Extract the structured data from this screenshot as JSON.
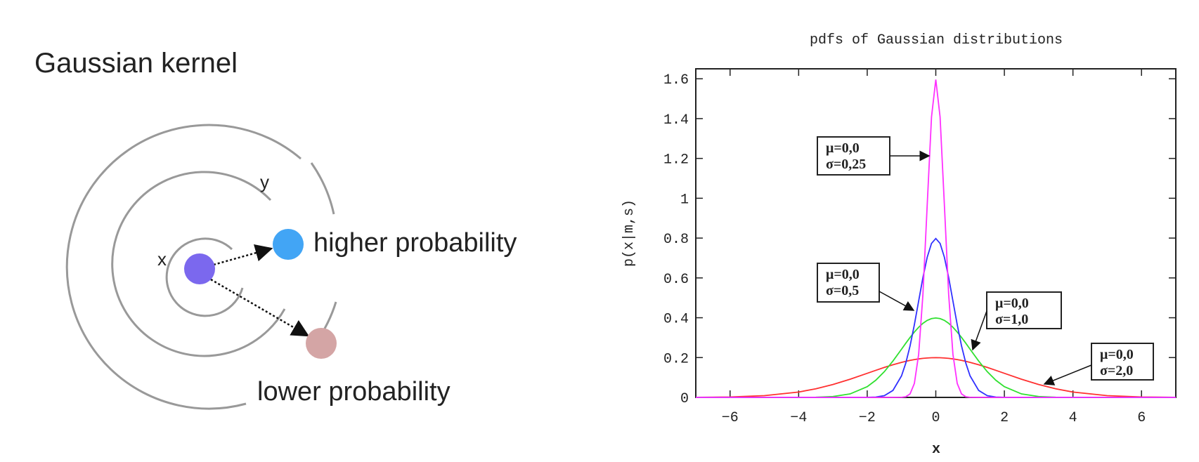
{
  "diagram": {
    "title": "Gaussian kernel",
    "point_x": "x",
    "point_y": "y",
    "higher": "higher probability",
    "lower": "lower probability"
  },
  "chart_data": {
    "type": "line",
    "title": "pdfs of Gaussian distributions",
    "x_label": "x",
    "y_label": "p(x|m,s)",
    "x": [
      -7,
      -6,
      -5,
      -4,
      -3.5,
      -3,
      -2.5,
      -2,
      -1.75,
      -1.5,
      -1.25,
      -1,
      -0.875,
      -0.75,
      -0.625,
      -0.5,
      -0.375,
      -0.25,
      -0.125,
      0,
      0.125,
      0.25,
      0.375,
      0.5,
      0.625,
      0.75,
      0.875,
      1,
      1.25,
      1.5,
      1.75,
      2,
      2.5,
      3,
      3.5,
      4,
      5,
      6,
      7
    ],
    "series": [
      {
        "name": "σ=2.0",
        "color": "#ff3030",
        "values": [
          0.0004,
          0.0022,
          0.0088,
          0.027,
          0.0431,
          0.0648,
          0.0913,
          0.121,
          0.136,
          0.1506,
          0.1641,
          0.176,
          0.1813,
          0.1859,
          0.19,
          0.1933,
          0.196,
          0.1979,
          0.1991,
          0.1995,
          0.1991,
          0.1979,
          0.196,
          0.1933,
          0.19,
          0.1859,
          0.1813,
          0.176,
          0.1641,
          0.1506,
          0.136,
          0.121,
          0.0913,
          0.0648,
          0.0431,
          0.027,
          0.0088,
          0.0022,
          0.0004
        ]
      },
      {
        "name": "σ=1.0",
        "color": "#30e030",
        "values": [
          0,
          0,
          0,
          0.0001,
          0.0009,
          0.0044,
          0.0175,
          0.054,
          0.0863,
          0.1295,
          0.1826,
          0.242,
          0.2721,
          0.3011,
          0.3282,
          0.3521,
          0.372,
          0.3867,
          0.3958,
          0.3989,
          0.3958,
          0.3867,
          0.372,
          0.3521,
          0.3282,
          0.3011,
          0.2721,
          0.242,
          0.1826,
          0.1295,
          0.0863,
          0.054,
          0.0175,
          0.0044,
          0.0009,
          0.0001,
          0,
          0,
          0
        ]
      },
      {
        "name": "σ=0.5",
        "color": "#3030ff",
        "values": [
          0,
          0,
          0,
          0,
          0,
          0,
          0,
          0.0003,
          0.0017,
          0.0089,
          0.035,
          0.108,
          0.1725,
          0.259,
          0.3653,
          0.4839,
          0.6022,
          0.7041,
          0.7733,
          0.7979,
          0.7733,
          0.7041,
          0.6022,
          0.4839,
          0.3653,
          0.259,
          0.1725,
          0.108,
          0.035,
          0.0089,
          0.0017,
          0.0003,
          0,
          0,
          0,
          0,
          0,
          0,
          0
        ]
      },
      {
        "name": "σ=0.25",
        "color": "#ff30ff",
        "values": [
          0,
          0,
          0,
          0,
          0,
          0,
          0,
          0,
          0,
          0,
          0,
          0.0005,
          0.0035,
          0.0177,
          0.07,
          0.216,
          0.518,
          0.9679,
          1.4083,
          1.5958,
          1.4083,
          0.9679,
          0.518,
          0.216,
          0.07,
          0.0177,
          0.0035,
          0.0005,
          0,
          0,
          0,
          0,
          0,
          0,
          0,
          0,
          0,
          0,
          0
        ]
      }
    ],
    "annotations": [
      {
        "lines": [
          "μ=0,0",
          "σ=0,25"
        ]
      },
      {
        "lines": [
          "μ=0,0",
          "σ=0,5"
        ]
      },
      {
        "lines": [
          "μ=0,0",
          "σ=1,0"
        ]
      },
      {
        "lines": [
          "μ=0,0",
          "σ=2,0"
        ]
      }
    ],
    "xlim": [
      -7,
      7
    ],
    "xticks": [
      {
        "value": -6,
        "label": "−6"
      },
      {
        "value": -4,
        "label": "−4"
      },
      {
        "value": -2,
        "label": "−2"
      },
      0,
      2,
      4,
      6
    ],
    "ylim": [
      0,
      1.65
    ],
    "yticks": [
      0,
      0.2,
      0.4,
      0.6,
      0.8,
      1,
      1.2,
      1.4,
      1.6
    ]
  }
}
